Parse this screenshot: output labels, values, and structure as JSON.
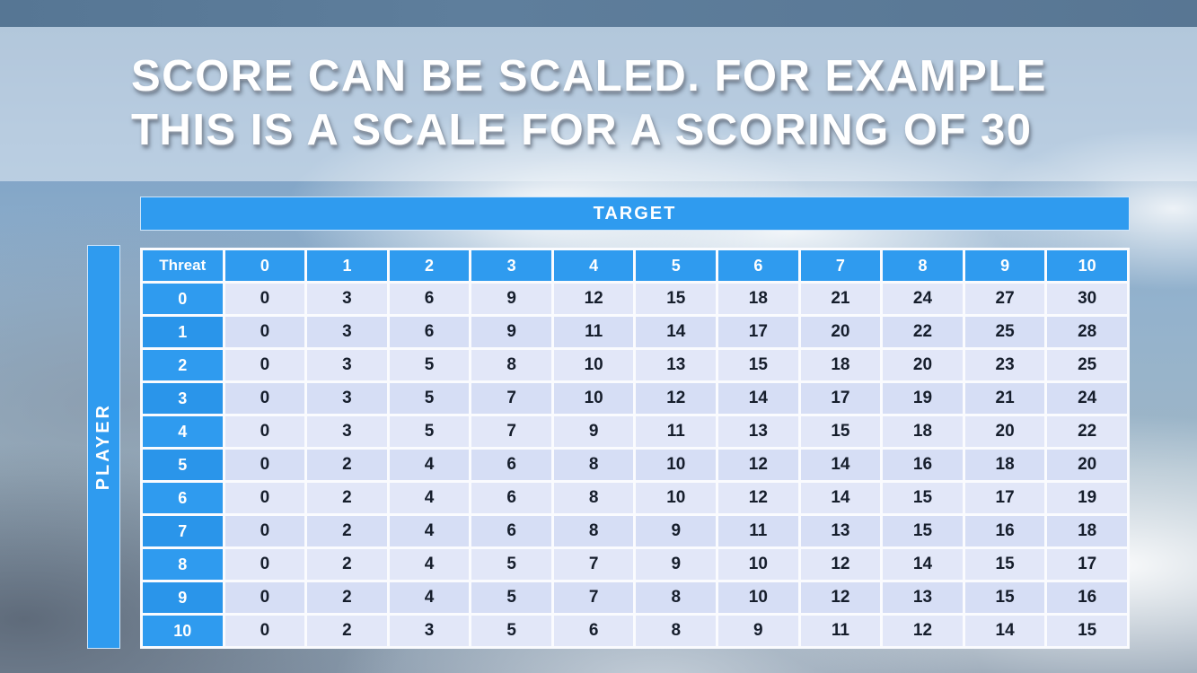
{
  "title": {
    "line1": "SCORE CAN BE SCALED. FOR EXAMPLE",
    "line2": "THIS IS A SCALE FOR A SCORING OF 30"
  },
  "table": {
    "target_label": "TARGET",
    "player_label": "PLAYER",
    "corner_label": "Threat",
    "col_headers": [
      "0",
      "1",
      "2",
      "3",
      "4",
      "5",
      "6",
      "7",
      "8",
      "9",
      "10"
    ],
    "row_headers": [
      "0",
      "1",
      "2",
      "3",
      "4",
      "5",
      "6",
      "7",
      "8",
      "9",
      "10"
    ],
    "rows": [
      [
        0,
        3,
        6,
        9,
        12,
        15,
        18,
        21,
        24,
        27,
        30
      ],
      [
        0,
        3,
        6,
        9,
        11,
        14,
        17,
        20,
        22,
        25,
        28
      ],
      [
        0,
        3,
        5,
        8,
        10,
        13,
        15,
        18,
        20,
        23,
        25
      ],
      [
        0,
        3,
        5,
        7,
        10,
        12,
        14,
        17,
        19,
        21,
        24
      ],
      [
        0,
        3,
        5,
        7,
        9,
        11,
        13,
        15,
        18,
        20,
        22
      ],
      [
        0,
        2,
        4,
        6,
        8,
        10,
        12,
        14,
        16,
        18,
        20
      ],
      [
        0,
        2,
        4,
        6,
        8,
        10,
        12,
        14,
        15,
        17,
        19
      ],
      [
        0,
        2,
        4,
        6,
        8,
        9,
        11,
        13,
        15,
        16,
        18
      ],
      [
        0,
        2,
        4,
        5,
        7,
        9,
        10,
        12,
        14,
        15,
        17
      ],
      [
        0,
        2,
        4,
        5,
        7,
        8,
        10,
        12,
        13,
        15,
        16
      ],
      [
        0,
        2,
        3,
        5,
        6,
        8,
        9,
        11,
        12,
        14,
        15
      ]
    ]
  },
  "colors": {
    "header_blue": "#2f9bef",
    "cell_light": "#e2e7f8",
    "cell_alt": "#d6def5",
    "top_strip": "#5e7e9c",
    "title_text": "#ffffff",
    "cell_text": "#161e2c"
  }
}
